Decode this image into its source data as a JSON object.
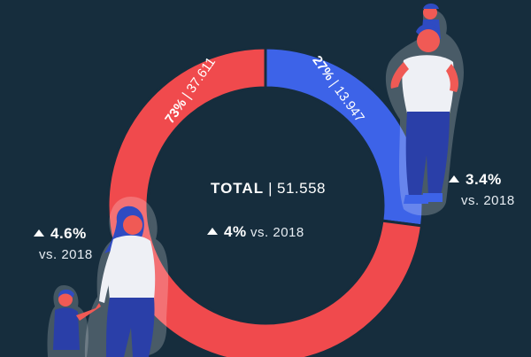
{
  "chart_data": {
    "type": "pie",
    "slices": [
      {
        "percent_label": "73%",
        "value_label": "37.611",
        "value": 37611,
        "color": "#f04a4d"
      },
      {
        "percent_label": "27%",
        "value_label": "13.947",
        "value": 13947,
        "color": "#3d63e8"
      }
    ],
    "total_label": "TOTAL",
    "total_value": "51.558",
    "center_change": "4%",
    "center_change_suffix": "vs. 2018",
    "left_change": "4.6%",
    "left_change_suffix": "vs. 2018",
    "right_change": "3.4%",
    "right_change_suffix": "vs. 2018"
  },
  "colors": {
    "background": "#162d3d",
    "red": "#f04a4d",
    "blue": "#3d63e8",
    "figure_halo": "#ffffff",
    "shirt": "#eef0f5",
    "pants": "#2a3fa8",
    "hair": "#2f4bc2",
    "skin": "#f05a55"
  },
  "icons": [
    "up-triangle-icon",
    "woman-figure",
    "child-figure",
    "father-child-figure"
  ]
}
